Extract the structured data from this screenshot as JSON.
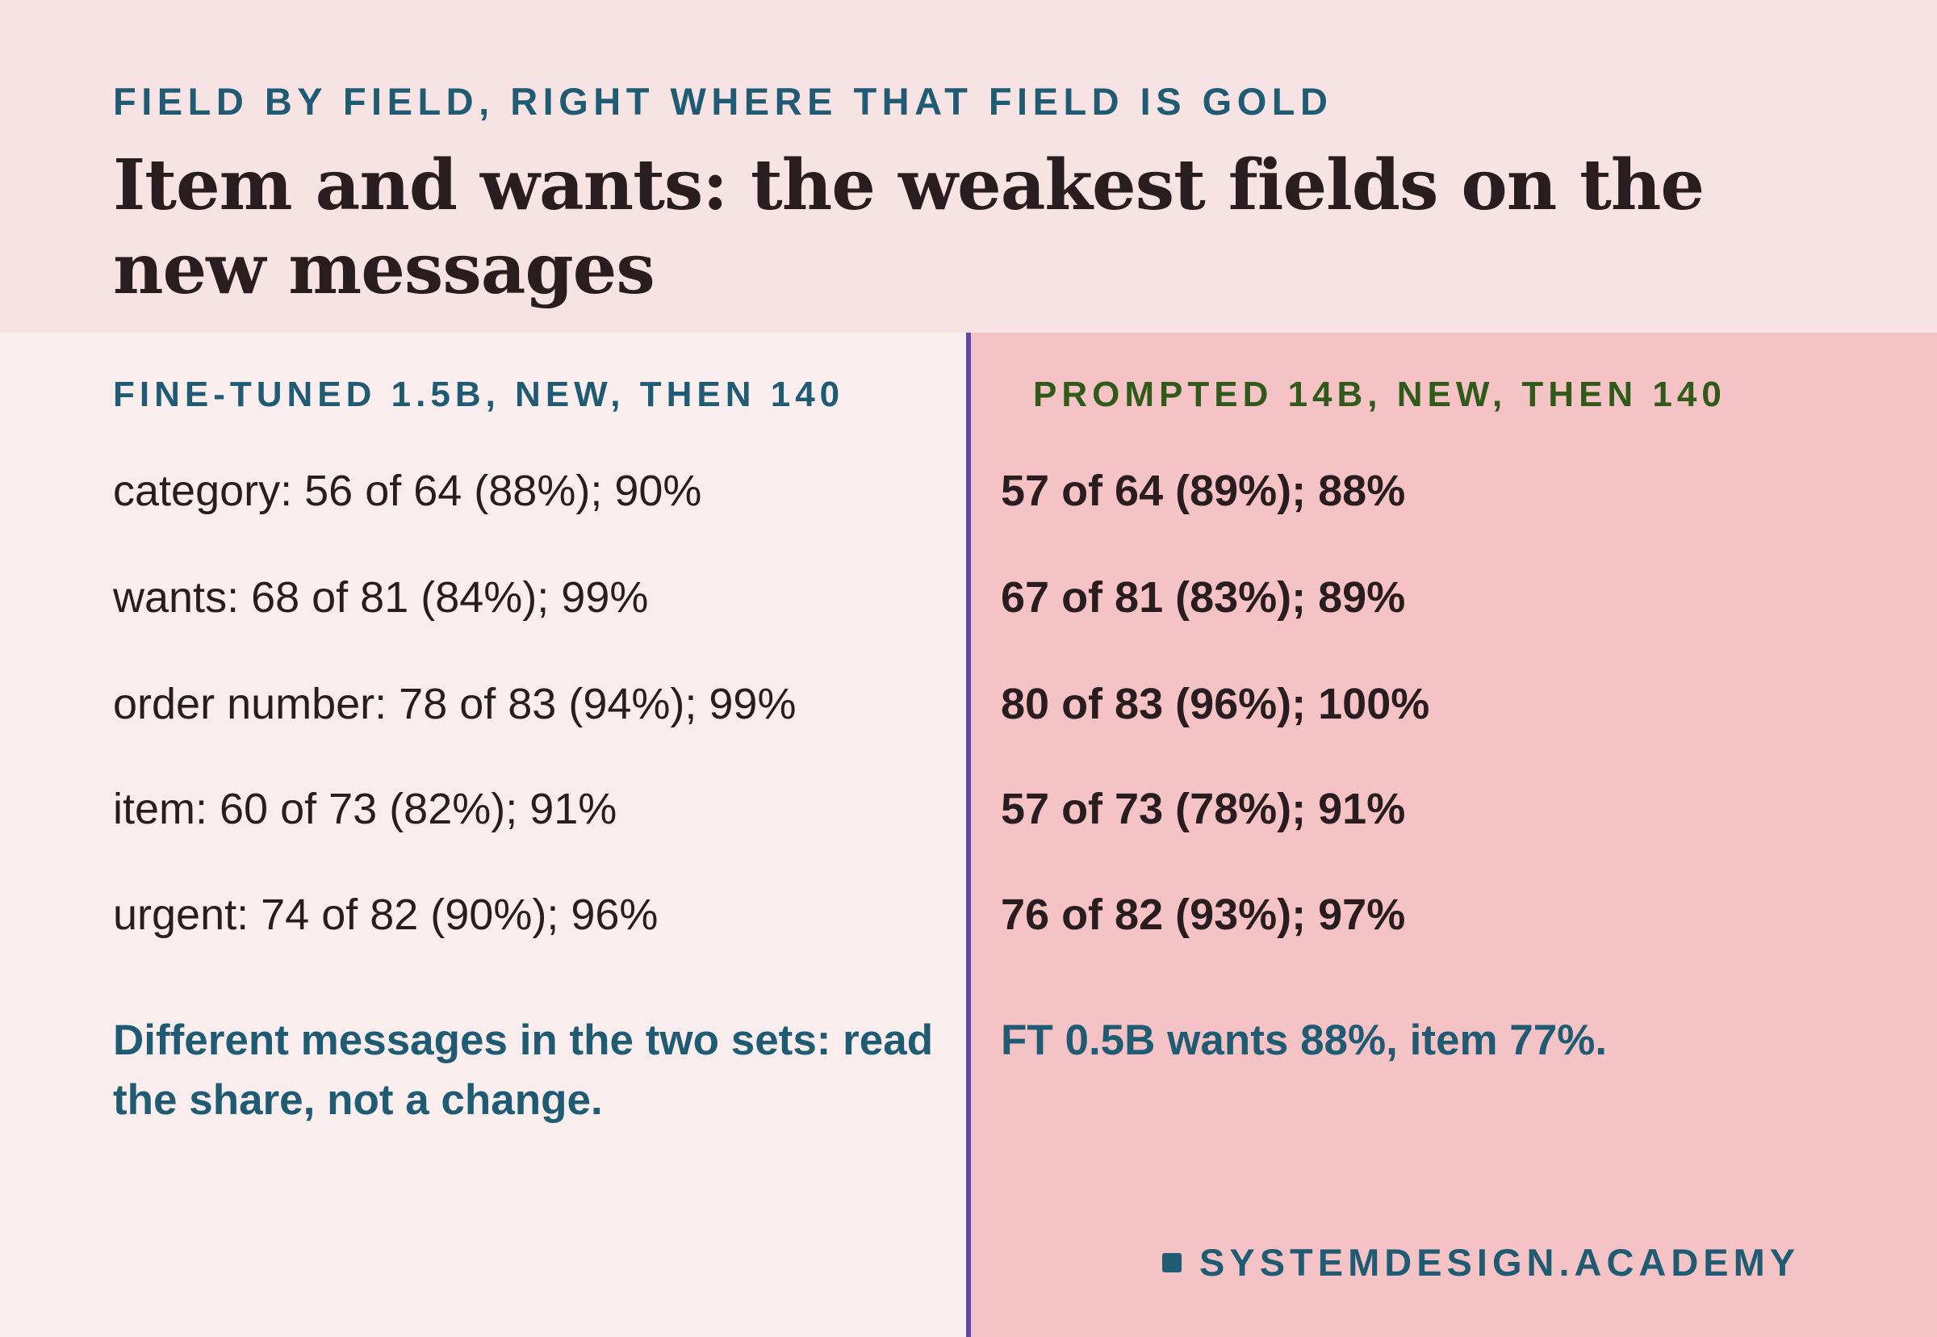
{
  "header": {
    "eyebrow": "FIELD BY FIELD, RIGHT WHERE THAT FIELD IS GOLD",
    "title": "Item and wants: the weakest fields on the new messages"
  },
  "left_column": {
    "heading": "FINE-TUNED 1.5B, NEW, THEN 140",
    "rows": [
      "category: 56 of 64 (88%); 90%",
      "wants: 68 of 81 (84%); 99%",
      "order number: 78 of 83 (94%); 99%",
      "item: 60 of 73 (82%); 91%",
      "urgent: 74 of 82 (90%); 96%"
    ],
    "note": "Different messages in the two sets: read the share, not a change."
  },
  "right_column": {
    "heading": "PROMPTED 14B, NEW, THEN 140",
    "rows": [
      "57 of 64 (89%); 88%",
      "67 of 81 (83%); 89%",
      "80 of 83 (96%); 100%",
      "57 of 73 (78%); 91%",
      "76 of 82 (93%); 97%"
    ],
    "note": "FT 0.5B wants 88%, item 77%."
  },
  "brand": {
    "text": "SYSTEMDESIGN.ACADEMY",
    "icon": "square-mark-icon"
  },
  "colors": {
    "header_bg": "#f8e3e4",
    "left_panel_bg": "#f9eded",
    "right_panel_bg": "#f5c3c5",
    "divider": "#6644b0",
    "teal_accent": "#1f5c74",
    "green_accent": "#2f5a19",
    "text": "#2a1d1f"
  }
}
